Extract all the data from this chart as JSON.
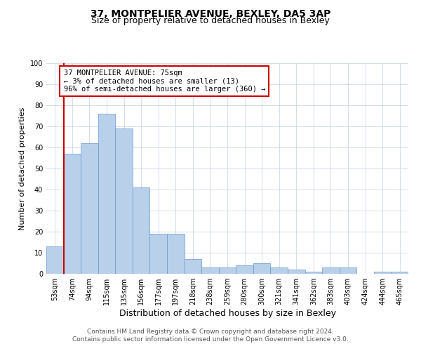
{
  "title": "37, MONTPELIER AVENUE, BEXLEY, DA5 3AP",
  "subtitle": "Size of property relative to detached houses in Bexley",
  "xlabel": "Distribution of detached houses by size in Bexley",
  "ylabel": "Number of detached properties",
  "categories": [
    "53sqm",
    "74sqm",
    "94sqm",
    "115sqm",
    "135sqm",
    "156sqm",
    "177sqm",
    "197sqm",
    "218sqm",
    "238sqm",
    "259sqm",
    "280sqm",
    "300sqm",
    "321sqm",
    "341sqm",
    "362sqm",
    "383sqm",
    "403sqm",
    "424sqm",
    "444sqm",
    "465sqm"
  ],
  "values": [
    13,
    57,
    62,
    76,
    69,
    41,
    19,
    19,
    7,
    3,
    3,
    4,
    5,
    3,
    2,
    1,
    3,
    3,
    0,
    1,
    1
  ],
  "bar_color": "#b8d0ea",
  "bar_edge_color": "#6699cc",
  "red_line_index": 1,
  "ylim": [
    0,
    100
  ],
  "yticks": [
    0,
    10,
    20,
    30,
    40,
    50,
    60,
    70,
    80,
    90,
    100
  ],
  "annotation_line1": "37 MONTPELIER AVENUE: 75sqm",
  "annotation_line2": "← 3% of detached houses are smaller (13)",
  "annotation_line3": "96% of semi-detached houses are larger (360) →",
  "annotation_box_color": "#ffffff",
  "annotation_box_edge_color": "#cc0000",
  "footnote1": "Contains HM Land Registry data © Crown copyright and database right 2024.",
  "footnote2": "Contains public sector information licensed under the Open Government Licence v3.0.",
  "background_color": "#ffffff",
  "grid_color": "#cdd8e8",
  "title_fontsize": 10,
  "subtitle_fontsize": 9,
  "xlabel_fontsize": 9,
  "ylabel_fontsize": 8,
  "tick_fontsize": 7,
  "annotation_fontsize": 7.5,
  "footnote_fontsize": 6.5
}
